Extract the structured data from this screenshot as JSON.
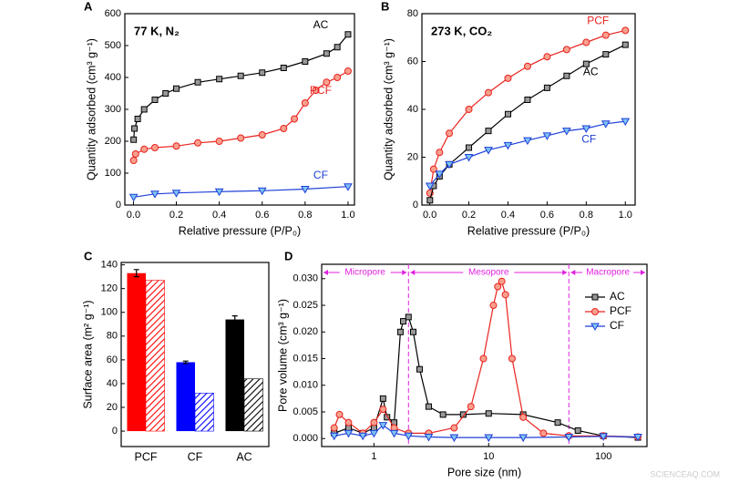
{
  "chart_data": [
    {
      "type": "line",
      "panel_label": "A",
      "annotation": "77 K, N₂",
      "x_label": "Relative pressure (P/P₀)",
      "y_label": "Quantity adsorbed (cm³ g⁻¹)",
      "xlim": [
        -0.04,
        1.03
      ],
      "ylim": [
        0,
        600
      ],
      "xticks": [
        {
          "value": 0,
          "label": "0.0"
        },
        0.2,
        0.4,
        0.6,
        0.8,
        {
          "value": 1,
          "label": "1.0"
        }
      ],
      "yticks": [
        0,
        100,
        200,
        300,
        400,
        500,
        600
      ],
      "series": [
        {
          "name": "AC",
          "color": "#000000",
          "fill": "#999999",
          "marker": "square",
          "x": [
            0.001,
            0.005,
            0.02,
            0.05,
            0.1,
            0.15,
            0.2,
            0.3,
            0.4,
            0.5,
            0.6,
            0.7,
            0.8,
            0.9,
            0.95,
            1.0
          ],
          "values": [
            205,
            240,
            270,
            300,
            330,
            350,
            365,
            385,
            395,
            405,
            415,
            430,
            450,
            475,
            495,
            535
          ]
        },
        {
          "name": "PCF",
          "color": "#e8231f",
          "fill": "#f7a08e",
          "marker": "circle",
          "x": [
            0.001,
            0.01,
            0.05,
            0.1,
            0.2,
            0.3,
            0.4,
            0.5,
            0.6,
            0.7,
            0.75,
            0.8,
            0.85,
            0.9,
            0.95,
            1.0
          ],
          "values": [
            140,
            160,
            175,
            180,
            185,
            195,
            200,
            210,
            220,
            240,
            270,
            320,
            360,
            385,
            400,
            420
          ]
        },
        {
          "name": "CF",
          "color": "#1f3fd8",
          "fill": "#7fc4f2",
          "marker": "triangle",
          "x": [
            0.001,
            0.1,
            0.2,
            0.4,
            0.6,
            0.8,
            1.0
          ],
          "values": [
            25,
            35,
            38,
            42,
            45,
            50,
            58
          ]
        }
      ]
    },
    {
      "type": "line",
      "panel_label": "B",
      "annotation": "273 K, CO₂",
      "x_label": "Relative pressure (P/P₀)",
      "y_label": "Quantity adsorbed (cm³ g⁻¹)",
      "xlim": [
        -0.04,
        1.05
      ],
      "ylim": [
        0,
        80
      ],
      "xticks": [
        {
          "value": 0,
          "label": "0.0"
        },
        0.2,
        0.4,
        0.6,
        0.8,
        {
          "value": 1,
          "label": "1.0"
        }
      ],
      "yticks": [
        0,
        20,
        40,
        60,
        80
      ],
      "series": [
        {
          "name": "PCF",
          "color": "#e8231f",
          "fill": "#f7a08e",
          "marker": "circle",
          "x": [
            0.001,
            0.02,
            0.05,
            0.1,
            0.2,
            0.3,
            0.4,
            0.5,
            0.6,
            0.7,
            0.8,
            0.9,
            1.0
          ],
          "values": [
            5,
            15,
            22,
            30,
            40,
            47,
            53,
            58,
            62,
            65,
            68,
            71,
            73
          ]
        },
        {
          "name": "AC",
          "color": "#000000",
          "fill": "#999999",
          "marker": "square",
          "x": [
            0.001,
            0.02,
            0.05,
            0.1,
            0.2,
            0.3,
            0.4,
            0.5,
            0.6,
            0.7,
            0.8,
            0.9,
            1.0
          ],
          "values": [
            2,
            8,
            12,
            17,
            24,
            31,
            38,
            44,
            49,
            54,
            59,
            63,
            67
          ]
        },
        {
          "name": "CF",
          "color": "#1f3fd8",
          "fill": "#7fc4f2",
          "marker": "triangle",
          "x": [
            0.001,
            0.05,
            0.1,
            0.2,
            0.3,
            0.4,
            0.5,
            0.6,
            0.7,
            0.8,
            0.9,
            1.0
          ],
          "values": [
            8,
            13,
            17,
            20,
            23,
            25,
            27,
            29,
            31,
            32,
            34,
            35
          ]
        }
      ]
    },
    {
      "type": "bar",
      "panel_label": "C",
      "y_label": "Surface area (m² g⁻¹)",
      "categories": [
        "PCF",
        "CF",
        "AC"
      ],
      "colors": [
        "#ff0000",
        "#0000ff",
        "#000000"
      ],
      "ylim": [
        -13,
        142
      ],
      "yticks": [
        0,
        20,
        40,
        60,
        80,
        100,
        120,
        140
      ],
      "series": [
        {
          "fill": "solid",
          "values": [
            133,
            58,
            94
          ],
          "errors": [
            3,
            1,
            3
          ]
        },
        {
          "fill": "hatched",
          "values": [
            127,
            32,
            44
          ]
        }
      ]
    },
    {
      "type": "line",
      "panel_label": "D",
      "xscale": "log",
      "x_label": "Pore size (nm)",
      "y_label": "Pore volume (cm³ g⁻¹)",
      "xlim": [
        0.35,
        240
      ],
      "ylim": [
        -0.0015,
        0.0327
      ],
      "xticks": [
        1,
        10,
        100
      ],
      "yticks": [
        {
          "value": 0,
          "label": "0.000"
        },
        0.005,
        {
          "value": 0.01,
          "label": "0.010"
        },
        0.015,
        {
          "value": 0.02,
          "label": "0.020"
        },
        0.025,
        {
          "value": 0.03,
          "label": "0.030"
        }
      ],
      "legend": "upper right",
      "regions": [
        {
          "label": "Micropore",
          "from": 0.35,
          "to": 2
        },
        {
          "label": "Mesopore",
          "from": 2,
          "to": 50
        },
        {
          "label": "Macropore",
          "from": 50,
          "to": 240
        }
      ],
      "series": [
        {
          "name": "AC",
          "color": "#000000",
          "fill": "#999999",
          "marker": "square",
          "x": [
            0.45,
            0.6,
            0.8,
            1.0,
            1.2,
            1.3,
            1.5,
            1.7,
            1.8,
            2.0,
            2.2,
            2.5,
            3,
            4,
            6,
            10,
            20,
            40,
            60,
            100,
            200
          ],
          "values": [
            0.001,
            0.002,
            0.001,
            0.002,
            0.0075,
            0.004,
            0.003,
            0.02,
            0.022,
            0.0228,
            0.02,
            0.013,
            0.006,
            0.0045,
            0.0045,
            0.0047,
            0.0045,
            0.003,
            0.0015,
            0.0005,
            0.0002
          ]
        },
        {
          "name": "PCF",
          "color": "#e8231f",
          "fill": "#f7a08e",
          "marker": "circle",
          "x": [
            0.45,
            0.5,
            0.6,
            0.8,
            1.0,
            1.2,
            1.5,
            2,
            3,
            5,
            7,
            9,
            11,
            12,
            13,
            14,
            16,
            20,
            30,
            50,
            100,
            200
          ],
          "values": [
            0.002,
            0.0045,
            0.003,
            0.001,
            0.003,
            0.0055,
            0.002,
            0.001,
            0.001,
            0.002,
            0.006,
            0.015,
            0.025,
            0.0285,
            0.0295,
            0.027,
            0.015,
            0.004,
            0.001,
            0.0005,
            0.0005,
            0.0003
          ]
        },
        {
          "name": "CF",
          "color": "#1f3fd8",
          "fill": "#7fc4f2",
          "marker": "triangle",
          "x": [
            0.45,
            0.6,
            0.8,
            1.0,
            1.2,
            1.5,
            2,
            3,
            5,
            10,
            20,
            50,
            100,
            200
          ],
          "values": [
            0.0005,
            0.001,
            0.0005,
            0.001,
            0.0025,
            0.001,
            0.0005,
            0.0003,
            0.0002,
            0.0002,
            0.0002,
            0.0003,
            0.0004,
            0.0003
          ]
        }
      ]
    }
  ],
  "watermark": "SCIENCEAQ.COM"
}
